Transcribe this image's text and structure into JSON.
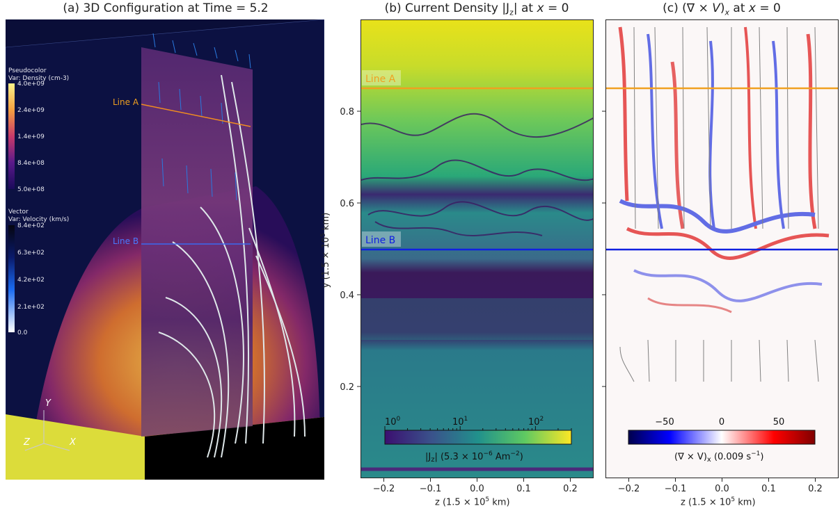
{
  "panels": {
    "a": {
      "title": "(a) 3D Configuration at Time = 5.2",
      "legend_density": {
        "heading": "Pseudocolor",
        "var": "Var: Density (cm-3)",
        "ticks": [
          "4.0e+09",
          "2.4e+09",
          "1.4e+09",
          "8.4e+08",
          "5.0e+08"
        ]
      },
      "legend_velocity": {
        "heading": "Vector",
        "var": "Var: Velocity (km/s)",
        "ticks": [
          "8.4e+02",
          "6.3e+02",
          "4.2e+02",
          "2.1e+02",
          "0.0"
        ]
      },
      "line_a": "Line A",
      "line_b": "Line B",
      "axes": {
        "y": "Y",
        "z": "Z",
        "x": "X"
      }
    },
    "b": {
      "title": "(b) Current Density |J_z| at x = 0",
      "line_a": "Line A",
      "line_b": "Line B",
      "colorbar": {
        "tick_labels": [
          "10^0",
          "10^1",
          "10^2"
        ],
        "label": "|Jz| (5.3 × 10^-6 Am^-2)"
      }
    },
    "c": {
      "title": "(c) (∇ × V)x at x = 0",
      "colorbar": {
        "tick_labels": [
          "−50",
          "0",
          "50"
        ],
        "label": "(∇ × V)x (0.009 s^-1)"
      }
    }
  },
  "axes": {
    "ylabel": "y (1.5 × 10^5 km)",
    "xlabel": "z (1.5 × 10^5 km)"
  },
  "colors": {
    "line_a": "#f0a020",
    "line_b": "#1020e0",
    "streamline": "#808080",
    "viridis_low": "#3b0f70",
    "viridis_high": "#f0e020"
  },
  "chart_data": [
    {
      "type": "heatmap",
      "panel": "b",
      "title": "(b) Current Density |J_z| at x = 0",
      "xlabel": "z (1.5 × 10^5 km)",
      "ylabel": "y (1.5 × 10^5 km)",
      "xlim": [
        -0.25,
        0.25
      ],
      "ylim": [
        0.0,
        1.0
      ],
      "x_ticks": [
        -0.2,
        -0.1,
        0.0,
        0.1,
        0.2
      ],
      "y_ticks": [
        0.2,
        0.4,
        0.6,
        0.8
      ],
      "horizontal_lines": [
        {
          "name": "Line A",
          "y": 0.85
        },
        {
          "name": "Line B",
          "y": 0.5
        }
      ],
      "colorbar": {
        "scale": "log",
        "range": [
          1,
          300
        ],
        "ticks": [
          1,
          10,
          100
        ],
        "colormap": "viridis"
      }
    },
    {
      "type": "heatmap",
      "panel": "c",
      "title": "(c) (∇ × V)x at x = 0",
      "xlabel": "z (1.5 × 10^5 km)",
      "xlim": [
        -0.25,
        0.25
      ],
      "ylim": [
        0.0,
        1.0
      ],
      "x_ticks": [
        -0.2,
        -0.1,
        0.0,
        0.1,
        0.2
      ],
      "y_ticks": [
        0.2,
        0.4,
        0.6,
        0.8
      ],
      "horizontal_lines": [
        {
          "name": "Line A",
          "y": 0.85
        },
        {
          "name": "Line B",
          "y": 0.5
        }
      ],
      "colorbar": {
        "scale": "linear",
        "range": [
          -100,
          100
        ],
        "ticks": [
          -50,
          0,
          50
        ],
        "colormap": "seismic"
      }
    }
  ]
}
